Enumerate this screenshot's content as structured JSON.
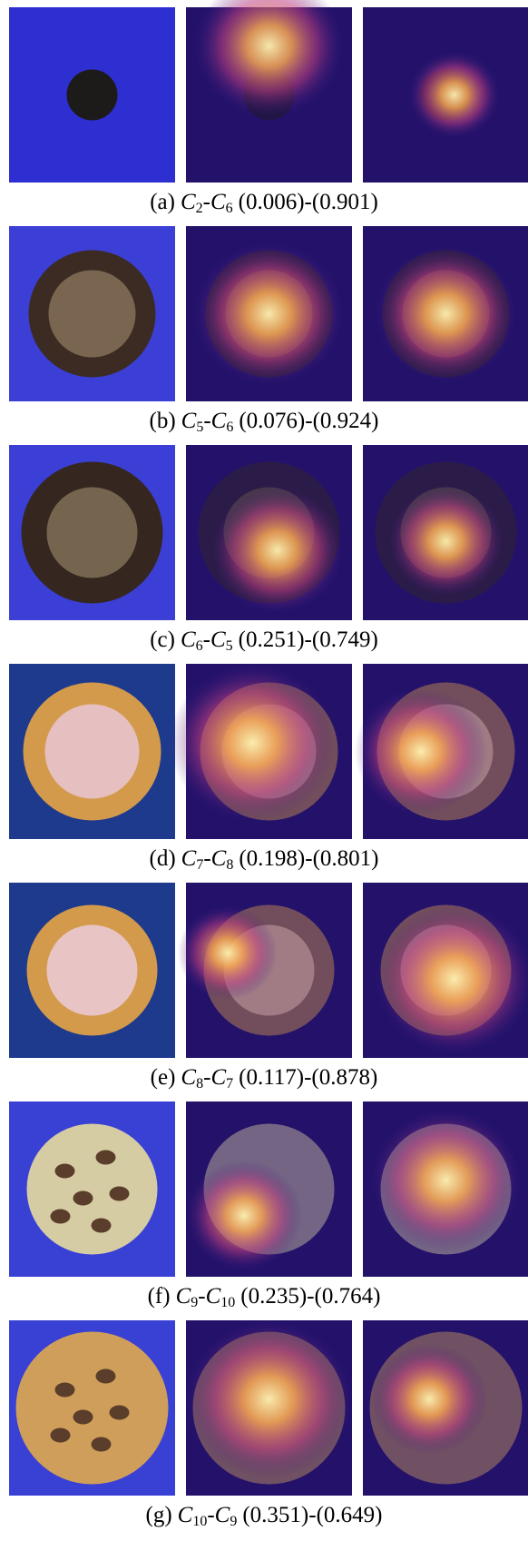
{
  "panels": [
    {
      "label": "(a)",
      "first": "C",
      "first_sub": "2",
      "sep": "-",
      "second": "C",
      "second_sub": "6",
      "scores": "(0.006)-(0.901)"
    },
    {
      "label": "(b)",
      "first": "C",
      "first_sub": "5",
      "sep": "-",
      "second": "C",
      "second_sub": "6",
      "scores": "(0.076)-(0.924)"
    },
    {
      "label": "(c)",
      "first": "C",
      "first_sub": "6",
      "sep": "-",
      "second": "C",
      "second_sub": "5",
      "scores": "(0.251)-(0.749)"
    },
    {
      "label": "(d)",
      "first": "C",
      "first_sub": "7",
      "sep": "-",
      "second": "C",
      "second_sub": "8",
      "scores": "(0.198)-(0.801)"
    },
    {
      "label": "(e)",
      "first": "C",
      "first_sub": "8",
      "sep": "-",
      "second": "C",
      "second_sub": "7",
      "scores": "(0.117)-(0.878)"
    },
    {
      "label": "(f)",
      "first": "C",
      "first_sub": "9",
      "sep": "-",
      "second": "C",
      "second_sub": "10",
      "scores": "(0.235)-(0.764)"
    },
    {
      "label": "(g)",
      "first": "C",
      "first_sub": "10",
      "sep": "-",
      "second": "C",
      "second_sub": "9",
      "scores": "(0.351)-(0.649)"
    }
  ]
}
